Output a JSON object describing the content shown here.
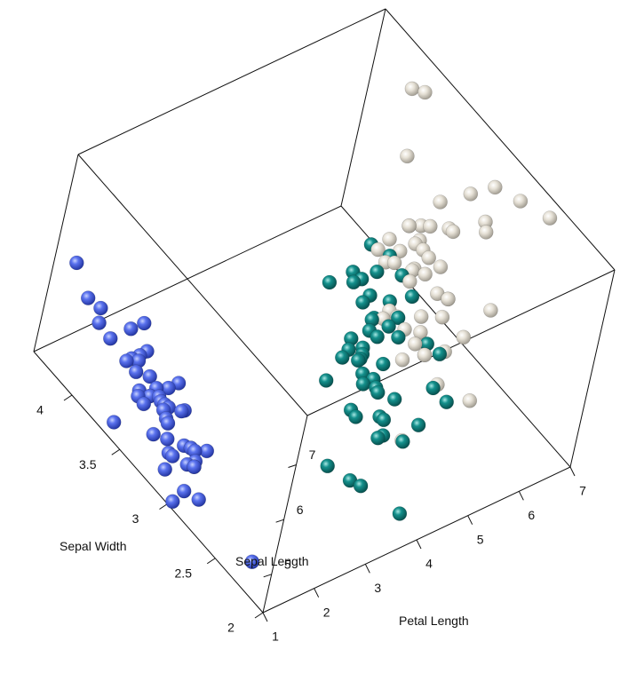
{
  "chart_data": {
    "type": "scatter",
    "projection": "3d-box",
    "axes": {
      "x": {
        "label": "Petal Length",
        "ticks": [
          1,
          2,
          3,
          4,
          5,
          6,
          7
        ],
        "range": [
          1,
          7
        ]
      },
      "y": {
        "label": "Sepal Width",
        "ticks": [
          2,
          2.5,
          3,
          3.5,
          4
        ],
        "tick_labels": [
          "2",
          "2.5",
          "3",
          "3.5",
          "4"
        ],
        "range": [
          2,
          4.4
        ]
      },
      "z": {
        "label": "Sepal Length",
        "ticks": [
          5,
          6,
          7
        ],
        "range": [
          4.3,
          7.9
        ]
      }
    },
    "series": [
      {
        "color": "#3b55d6",
        "points": [
          [
            1.4,
            3.5,
            5.1
          ],
          [
            1.4,
            3.0,
            4.9
          ],
          [
            1.3,
            3.2,
            4.7
          ],
          [
            1.5,
            3.1,
            4.6
          ],
          [
            1.4,
            3.6,
            5.0
          ],
          [
            1.7,
            3.9,
            5.4
          ],
          [
            1.4,
            3.4,
            4.6
          ],
          [
            1.5,
            3.4,
            5.0
          ],
          [
            1.4,
            2.9,
            4.4
          ],
          [
            1.5,
            3.1,
            4.9
          ],
          [
            1.5,
            3.7,
            5.4
          ],
          [
            1.6,
            3.4,
            4.8
          ],
          [
            1.4,
            3.0,
            4.8
          ],
          [
            1.1,
            3.0,
            4.3
          ],
          [
            1.2,
            4.0,
            5.8
          ],
          [
            1.5,
            4.4,
            5.7
          ],
          [
            1.3,
            3.9,
            5.4
          ],
          [
            1.4,
            3.5,
            5.1
          ],
          [
            1.7,
            3.8,
            5.7
          ],
          [
            1.5,
            3.8,
            5.1
          ],
          [
            1.7,
            3.4,
            5.4
          ],
          [
            1.5,
            3.7,
            5.1
          ],
          [
            1.0,
            3.6,
            4.6
          ],
          [
            1.7,
            3.3,
            5.1
          ],
          [
            1.9,
            3.4,
            4.8
          ],
          [
            1.6,
            3.0,
            5.0
          ],
          [
            1.6,
            3.4,
            5.0
          ],
          [
            1.5,
            3.5,
            5.2
          ],
          [
            1.4,
            3.4,
            5.2
          ],
          [
            1.6,
            3.2,
            4.7
          ],
          [
            1.6,
            3.1,
            4.8
          ],
          [
            1.5,
            3.4,
            5.4
          ],
          [
            1.5,
            4.1,
            5.2
          ],
          [
            1.4,
            4.2,
            5.5
          ],
          [
            1.5,
            3.1,
            4.9
          ],
          [
            1.2,
            3.2,
            5.0
          ],
          [
            1.3,
            3.5,
            5.5
          ],
          [
            1.4,
            3.6,
            4.9
          ],
          [
            1.3,
            3.0,
            4.4
          ],
          [
            1.5,
            3.4,
            5.1
          ],
          [
            1.3,
            3.5,
            5.0
          ],
          [
            1.3,
            2.3,
            4.5
          ],
          [
            1.3,
            3.2,
            4.4
          ],
          [
            1.6,
            3.5,
            5.0
          ],
          [
            1.9,
            3.8,
            5.1
          ],
          [
            1.4,
            3.0,
            4.8
          ],
          [
            1.6,
            3.8,
            5.1
          ],
          [
            1.4,
            3.2,
            4.6
          ],
          [
            1.5,
            3.7,
            5.3
          ],
          [
            1.4,
            3.3,
            5.0
          ]
        ]
      },
      {
        "color": "#0f7a78",
        "points": [
          [
            4.7,
            3.2,
            7.0
          ],
          [
            4.5,
            3.2,
            6.4
          ],
          [
            4.9,
            3.1,
            6.9
          ],
          [
            4.0,
            2.3,
            5.5
          ],
          [
            4.6,
            2.8,
            6.5
          ],
          [
            4.5,
            2.8,
            5.7
          ],
          [
            4.7,
            3.3,
            6.3
          ],
          [
            3.3,
            2.4,
            4.9
          ],
          [
            4.6,
            2.9,
            6.6
          ],
          [
            3.9,
            2.7,
            5.2
          ],
          [
            3.5,
            2.0,
            5.0
          ],
          [
            4.2,
            3.0,
            5.9
          ],
          [
            4.0,
            2.2,
            6.0
          ],
          [
            4.7,
            2.9,
            6.1
          ],
          [
            3.6,
            2.9,
            5.6
          ],
          [
            4.4,
            3.1,
            6.7
          ],
          [
            4.5,
            3.0,
            5.6
          ],
          [
            4.1,
            2.7,
            5.8
          ],
          [
            4.5,
            2.2,
            6.2
          ],
          [
            3.9,
            2.5,
            5.6
          ],
          [
            4.8,
            3.2,
            5.9
          ],
          [
            4.0,
            2.8,
            6.1
          ],
          [
            4.9,
            2.5,
            6.3
          ],
          [
            4.7,
            2.8,
            6.1
          ],
          [
            4.3,
            2.9,
            6.4
          ],
          [
            4.4,
            3.0,
            6.6
          ],
          [
            4.8,
            2.8,
            6.8
          ],
          [
            5.0,
            3.0,
            6.7
          ],
          [
            4.5,
            2.9,
            6.0
          ],
          [
            3.5,
            2.6,
            5.7
          ],
          [
            3.8,
            2.4,
            5.5
          ],
          [
            3.7,
            2.4,
            5.5
          ],
          [
            3.9,
            2.7,
            5.8
          ],
          [
            5.1,
            2.7,
            6.0
          ],
          [
            4.5,
            3.0,
            5.4
          ],
          [
            4.5,
            3.4,
            6.0
          ],
          [
            4.7,
            3.1,
            6.7
          ],
          [
            4.4,
            2.3,
            6.3
          ],
          [
            4.1,
            3.0,
            5.6
          ],
          [
            4.0,
            2.5,
            5.5
          ],
          [
            4.4,
            2.6,
            5.5
          ],
          [
            4.6,
            3.0,
            6.1
          ],
          [
            4.0,
            2.6,
            5.8
          ],
          [
            3.3,
            2.3,
            5.0
          ],
          [
            4.2,
            2.7,
            5.6
          ],
          [
            4.2,
            3.0,
            5.7
          ],
          [
            4.2,
            2.9,
            5.7
          ],
          [
            4.3,
            2.9,
            6.2
          ],
          [
            3.0,
            2.5,
            5.1
          ],
          [
            4.1,
            2.8,
            5.7
          ]
        ]
      },
      {
        "color": "#ddd8cc",
        "points": [
          [
            6.0,
            3.3,
            6.3
          ],
          [
            5.1,
            2.7,
            5.8
          ],
          [
            5.9,
            3.0,
            7.1
          ],
          [
            5.6,
            2.9,
            6.3
          ],
          [
            5.8,
            3.0,
            6.5
          ],
          [
            6.6,
            3.0,
            7.6
          ],
          [
            4.5,
            2.5,
            4.9
          ],
          [
            6.3,
            2.9,
            7.3
          ],
          [
            5.8,
            2.5,
            6.7
          ],
          [
            6.1,
            3.6,
            7.2
          ],
          [
            5.1,
            3.2,
            6.5
          ],
          [
            5.3,
            2.7,
            6.4
          ],
          [
            5.5,
            3.0,
            6.8
          ],
          [
            5.0,
            2.5,
            5.7
          ],
          [
            5.1,
            2.8,
            5.8
          ],
          [
            5.3,
            3.2,
            6.4
          ],
          [
            5.5,
            3.0,
            6.5
          ],
          [
            6.7,
            3.8,
            7.7
          ],
          [
            6.9,
            2.6,
            7.7
          ],
          [
            5.0,
            2.2,
            6.0
          ],
          [
            5.7,
            3.2,
            6.9
          ],
          [
            4.9,
            2.8,
            5.6
          ],
          [
            6.7,
            2.8,
            7.7
          ],
          [
            4.9,
            2.7,
            6.3
          ],
          [
            5.7,
            3.3,
            6.7
          ],
          [
            6.0,
            3.2,
            7.2
          ],
          [
            4.8,
            2.8,
            6.2
          ],
          [
            4.9,
            3.0,
            6.1
          ],
          [
            5.6,
            2.8,
            6.4
          ],
          [
            5.8,
            3.0,
            7.2
          ],
          [
            6.1,
            2.8,
            7.4
          ],
          [
            6.4,
            3.8,
            7.9
          ],
          [
            5.6,
            2.8,
            6.4
          ],
          [
            5.1,
            2.8,
            6.3
          ],
          [
            5.6,
            2.6,
            6.1
          ],
          [
            6.1,
            3.0,
            7.7
          ],
          [
            5.6,
            3.4,
            6.3
          ],
          [
            5.5,
            3.1,
            6.4
          ],
          [
            4.8,
            3.0,
            6.0
          ],
          [
            5.4,
            3.1,
            6.9
          ],
          [
            5.6,
            3.1,
            6.7
          ],
          [
            5.1,
            3.1,
            6.9
          ],
          [
            5.1,
            2.7,
            5.8
          ],
          [
            5.9,
            3.2,
            6.8
          ],
          [
            5.7,
            3.3,
            6.7
          ],
          [
            5.2,
            3.0,
            6.7
          ],
          [
            5.0,
            2.5,
            6.3
          ],
          [
            5.2,
            3.0,
            6.5
          ],
          [
            5.4,
            3.4,
            6.2
          ],
          [
            5.1,
            3.0,
            5.9
          ]
        ]
      }
    ]
  }
}
